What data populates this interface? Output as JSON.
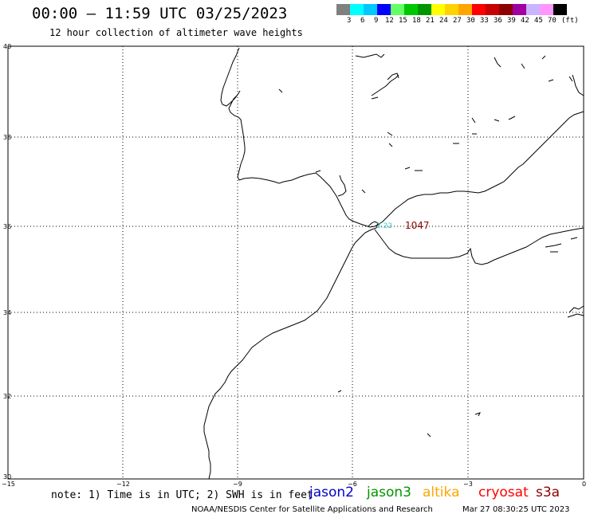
{
  "header": {
    "title": "00:00 – 11:59 UTC 03/25/2023",
    "subtitle": "12 hour collection of altimeter wave heights"
  },
  "color_scale": {
    "swatches": [
      "#808080",
      "#00ffff",
      "#00c8ff",
      "#0000ff",
      "#64ff64",
      "#00c800",
      "#009600",
      "#ffff00",
      "#ffd200",
      "#ffa500",
      "#ff0000",
      "#c80000",
      "#8b0000",
      "#a000a0",
      "#c8b4ff",
      "#ff96ff",
      "#000000"
    ],
    "labels": [
      "3",
      "6",
      "9",
      "12",
      "15",
      "18",
      "21",
      "24",
      "27",
      "30",
      "33",
      "36",
      "39",
      "42",
      "45",
      "70",
      "(ft)"
    ]
  },
  "axes": {
    "lat_labels": [
      "40",
      "38",
      "36",
      "34",
      "32",
      "30"
    ],
    "lon_labels": [
      "−15",
      "−12",
      "−9",
      "−6",
      "−3",
      "0"
    ]
  },
  "annotations": [
    {
      "text": "3.22",
      "color": "#33cccc"
    },
    {
      "text": "1047",
      "color": "#8b0000"
    }
  ],
  "note": "note: 1) Time is in UTC; 2) SWH is in feet",
  "satellites": [
    {
      "name": "jason2",
      "color": "#0000cc"
    },
    {
      "name": "jason3",
      "color": "#009600"
    },
    {
      "name": "altika",
      "color": "#ffa500"
    },
    {
      "name": "cryosat",
      "color": "#ff0000"
    },
    {
      "name": "s3a",
      "color": "#8b0000"
    }
  ],
  "footer": {
    "source": "NOAA/NESDIS Center for Satellite Applications and Research",
    "timestamp": "Mar 27 08:30:25 UTC 2023"
  }
}
